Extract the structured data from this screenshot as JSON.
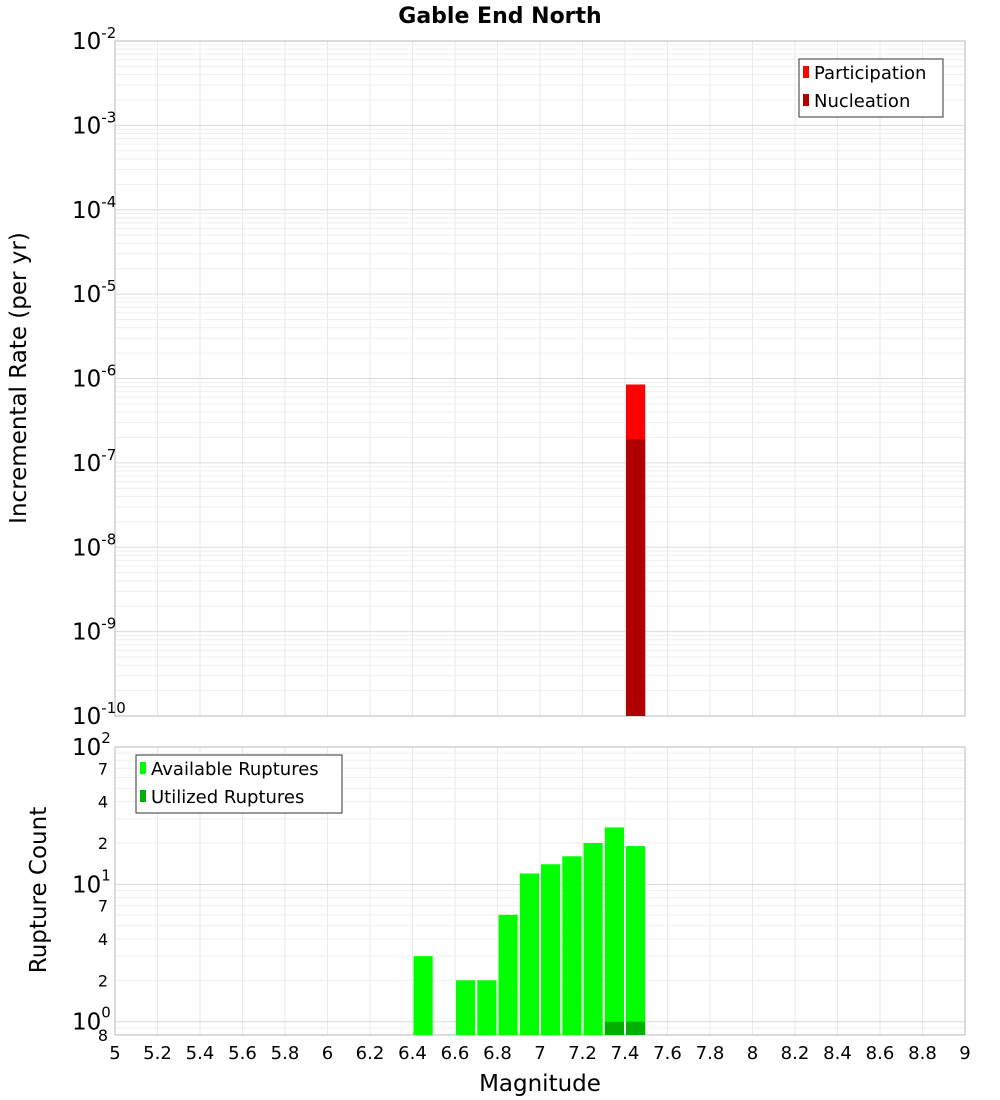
{
  "chart_data": {
    "type": "bar",
    "title": "Gable End North",
    "xlabel": "Magnitude",
    "xlim": [
      5,
      9
    ],
    "x_ticks": [
      "5",
      "5.2",
      "5.4",
      "5.6",
      "5.8",
      "6",
      "6.2",
      "6.4",
      "6.6",
      "6.8",
      "7",
      "7.2",
      "7.4",
      "7.6",
      "7.8",
      "8",
      "8.2",
      "8.4",
      "8.6",
      "8.8",
      "9"
    ],
    "bin_width": 0.1,
    "panels": [
      {
        "id": "rate",
        "ylabel": "Incremental Rate (per yr)",
        "yscale": "log",
        "ylim": [
          1e-10,
          0.01
        ],
        "y_ticks": [
          {
            "base": "10",
            "exp": "-2"
          },
          {
            "base": "10",
            "exp": "-3"
          },
          {
            "base": "10",
            "exp": "-4"
          },
          {
            "base": "10",
            "exp": "-5"
          },
          {
            "base": "10",
            "exp": "-6"
          },
          {
            "base": "10",
            "exp": "-7"
          },
          {
            "base": "10",
            "exp": "-8"
          },
          {
            "base": "10",
            "exp": "-9"
          },
          {
            "base": "10",
            "exp": "-10"
          }
        ],
        "legend": {
          "position": "top-right"
        },
        "series": [
          {
            "name": "Participation",
            "color": "#ff0000",
            "x": [
              7.45
            ],
            "values": [
              8.5e-07
            ]
          },
          {
            "name": "Nucleation",
            "color": "#b00000",
            "x": [
              7.45
            ],
            "values": [
              1.9e-07
            ]
          }
        ]
      },
      {
        "id": "count",
        "ylabel": "Rupture Count",
        "yscale": "log",
        "ylim": [
          0.8,
          100
        ],
        "y_major_ticks": [
          {
            "base": "10",
            "exp": "2"
          },
          {
            "base": "10",
            "exp": "1"
          },
          {
            "base": "10",
            "exp": "0"
          }
        ],
        "y_minor_ticks": [
          "7",
          "4",
          "2",
          "7",
          "4",
          "2",
          "8"
        ],
        "legend": {
          "position": "top-left"
        },
        "series": [
          {
            "name": "Available Ruptures",
            "color": "#00ff00",
            "x": [
              6.45,
              6.65,
              6.75,
              6.85,
              6.95,
              7.05,
              7.15,
              7.25,
              7.35,
              7.45
            ],
            "values": [
              3,
              2,
              2,
              6,
              12,
              14,
              16,
              20,
              26,
              19
            ]
          },
          {
            "name": "Utilized Ruptures",
            "color": "#00b000",
            "x": [
              7.35,
              7.45
            ],
            "values": [
              1,
              1
            ]
          }
        ]
      }
    ]
  }
}
